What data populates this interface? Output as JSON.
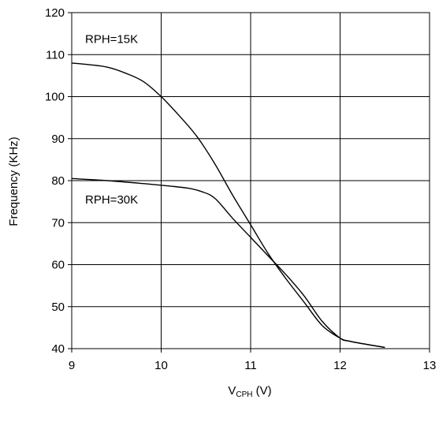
{
  "chart_data": {
    "type": "line",
    "title": "",
    "xlabel_main": "V",
    "xlabel_sub": "CPH",
    "xlabel_unit": " (V)",
    "ylabel": "Frequency (KHz)",
    "xlim": [
      9,
      13
    ],
    "ylim": [
      40,
      120
    ],
    "xticks": [
      9,
      10,
      11,
      12,
      13
    ],
    "yticks": [
      40,
      50,
      60,
      70,
      80,
      90,
      100,
      110,
      120
    ],
    "grid": true,
    "legend": "none",
    "colors": {
      "line": "#000000",
      "grid": "#000000",
      "background": "#ffffff"
    },
    "series": [
      {
        "name": "RPH=15K",
        "x": [
          9.0,
          9.2,
          9.4,
          9.6,
          9.8,
          10.0,
          10.2,
          10.4,
          10.6,
          10.8,
          11.0,
          11.2,
          11.4,
          11.6,
          11.8,
          12.0,
          12.1,
          12.3,
          12.5
        ],
        "y": [
          108,
          107.6,
          107,
          105.6,
          103.6,
          100,
          95.5,
          90.5,
          84,
          76.5,
          69.5,
          62.5,
          56.5,
          51,
          45.5,
          42.5,
          41.8,
          41.0,
          40.3
        ]
      },
      {
        "name": "RPH=30K",
        "x": [
          9.0,
          9.4,
          9.8,
          10.1,
          10.3,
          10.45,
          10.6,
          10.8,
          11.0,
          11.2,
          11.4,
          11.6,
          11.8,
          12.0,
          12.1,
          12.3,
          12.5
        ],
        "y": [
          80.5,
          80,
          79.3,
          78.7,
          78.2,
          77.4,
          75.8,
          71,
          66.5,
          62,
          57.5,
          52.5,
          46.5,
          42.5,
          41.8,
          41.0,
          40.3
        ]
      }
    ],
    "annotations": [
      {
        "text": "RPH=15K",
        "x": 9.15,
        "y": 113.7
      },
      {
        "text": "RPH=30K",
        "x": 9.15,
        "y": 75.5
      }
    ]
  }
}
